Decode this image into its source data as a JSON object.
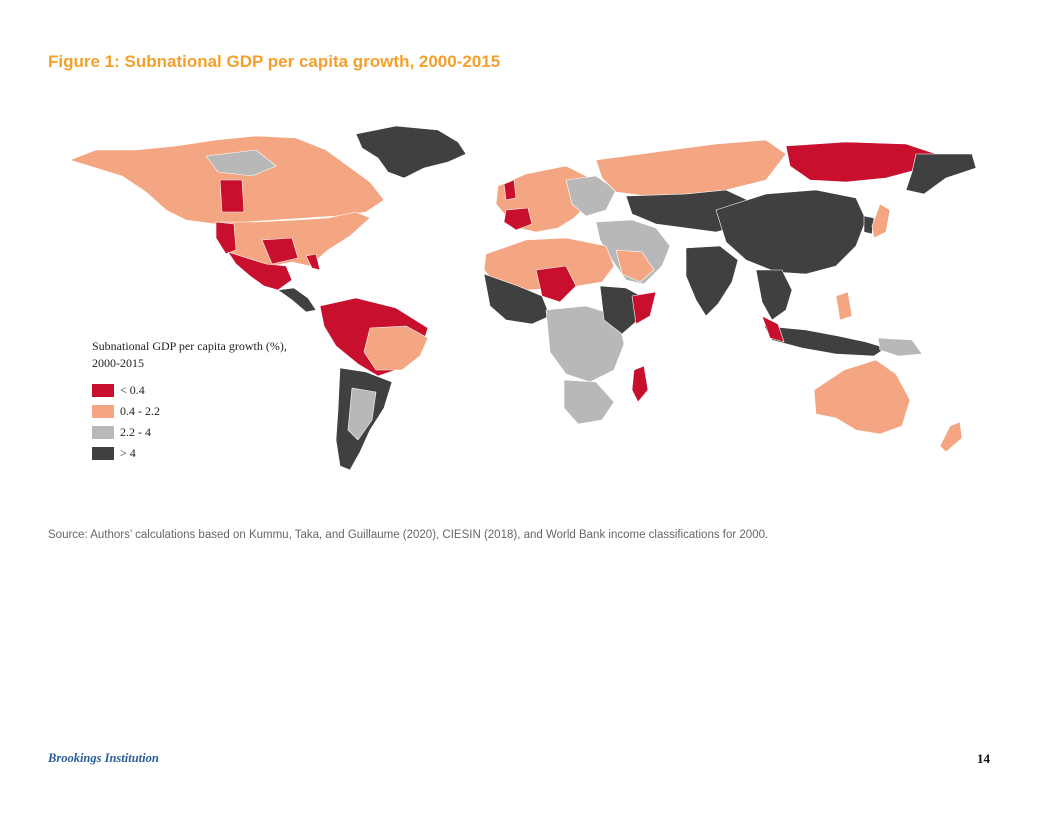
{
  "figure": {
    "title": "Figure 1: Subnational GDP per capita growth, 2000-2015"
  },
  "legend": {
    "title_line1": "Subnational GDP per capita growth (%),",
    "title_line2": "2000-2015",
    "items": [
      {
        "label": "< 0.4",
        "color": "#c8102e"
      },
      {
        "label": "0.4 - 2.2",
        "color": "#f4a582"
      },
      {
        "label": "2.2 - 4",
        "color": "#b8b8b8"
      },
      {
        "label": "> 4",
        "color": "#404040"
      }
    ]
  },
  "source": {
    "text": "Source: Authors’ calculations based on Kummu, Taka, and Guillaume (2020), CIESIN (2018), and World Bank income classifications for 2000."
  },
  "footer": {
    "publisher": "Brookings Institution",
    "page_number": "14"
  }
}
